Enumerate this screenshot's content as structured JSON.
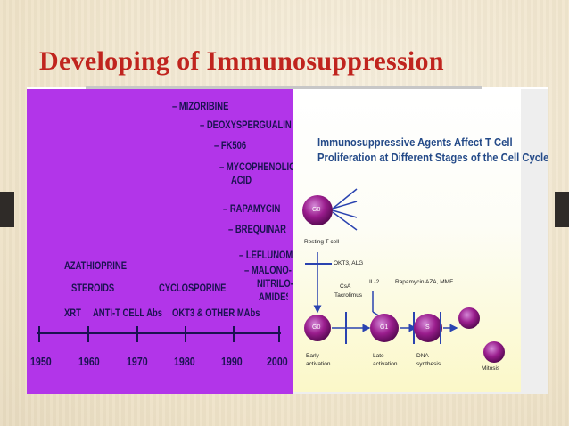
{
  "slide": {
    "title": "Developing of Immunosuppression"
  },
  "timeline": {
    "years": [
      "1950",
      "1960",
      "1970",
      "1980",
      "1990",
      "2000"
    ],
    "labels": {
      "mizoribine": "– MIZORIBINE",
      "deoxy": "– DEOXYSPERGUALIN",
      "fk506": "– FK506",
      "myco1": "– MYCOPHENOLIC",
      "myco2": "ACID",
      "rapamycin": "– RAPAMYCIN",
      "brequinar": "– BREQUINAR",
      "leflunomide": "– LEFLUNOMIDE",
      "malono1": "– MALONO-",
      "malono2": "NITRILO-",
      "malono3": "AMIDES",
      "azathioprine": "AZATHIOPRINE",
      "steroids": "STEROIDS",
      "cyclosporine": "CYCLOSPORINE",
      "xrt": "XRT",
      "antit": "ANTI-T CELL Abs",
      "okt3": "OKT3 & OTHER MAbs"
    }
  },
  "cellcycle": {
    "title_line1": "Immunosuppressive Agents Affect T Cell",
    "title_line2": "Proliferation at Different Stages of the Cell Cycle",
    "cells": {
      "g0a": "G0",
      "g0b": "G0",
      "g1": "G1",
      "s": "S"
    },
    "resting": "Resting T cell",
    "okt3": "OKT3, ALG",
    "il2": "IL-2",
    "csa": "CsA",
    "tacrolimus": "Tacrolimus",
    "rapamycin": "Rapamycin",
    "aza": "AZA, MMF",
    "early1": "Early",
    "early2": "activation",
    "late1": "Late",
    "late2": "activation",
    "dna1": "DNA",
    "dna2": "synthesis",
    "mitosis": "Mitosis"
  }
}
